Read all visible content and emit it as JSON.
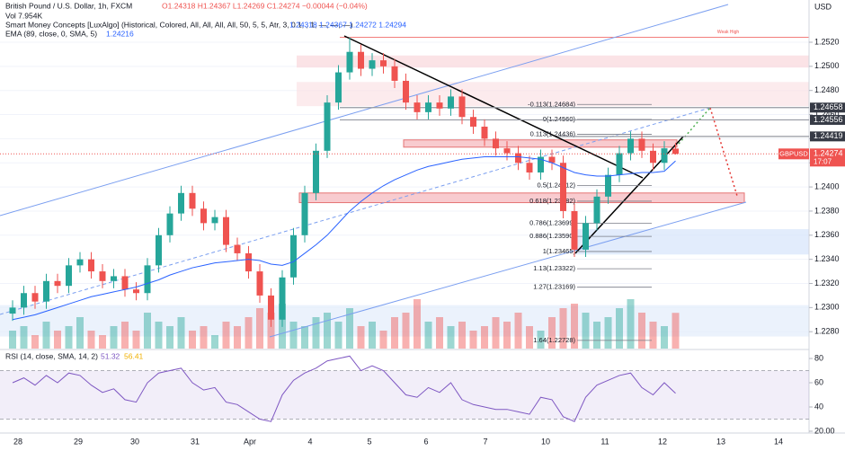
{
  "header": {
    "symbol": "British Pound / U.S. Dollar, 1h, FXCM",
    "ohlc": "O1.24318 H1.24367 L1.24269 C1.24274 −0.00044 (−0.04%)",
    "volume": "Vol 7.954K",
    "smc": "Smart Money Concepts [LuxAlgo] (Historical, Colored, All, All, All, All, 50, 5, 5, Atr, 3, 0.1, , 1, —, —, —)",
    "smc_values": "1.24318 1.24367 1.24272 1.24294",
    "ema": "EMA (89, close, 0, SMA, 5)",
    "ema_value": "1.24216",
    "currency": "USD"
  },
  "chart_data": [
    {
      "type": "candlestick",
      "open": [
        1.2295,
        1.23,
        1.2312,
        1.2305,
        1.2322,
        1.2318,
        1.2335,
        1.234,
        1.233,
        1.2322,
        1.2326,
        1.2315,
        1.2312,
        1.2335,
        1.236,
        1.2378,
        1.2395,
        1.2382,
        1.237,
        1.2375,
        1.2352,
        1.2345,
        1.233,
        1.231,
        1.229,
        1.2325,
        1.236,
        1.2395,
        1.243,
        1.247,
        1.2495,
        1.2512,
        1.2498,
        1.2505,
        1.25,
        1.2488,
        1.247,
        1.2462,
        1.247,
        1.2465,
        1.2475,
        1.2458,
        1.245,
        1.244,
        1.2432,
        1.2428,
        1.242,
        1.2412,
        1.2425,
        1.242,
        1.238,
        1.2348,
        1.237,
        1.2392,
        1.241,
        1.2428,
        1.244,
        1.243,
        1.242,
        1.24318
      ],
      "high": [
        1.2306,
        1.2318,
        1.2318,
        1.2328,
        1.2328,
        1.2341,
        1.2346,
        1.2346,
        1.2336,
        1.2332,
        1.2332,
        1.2321,
        1.2341,
        1.2366,
        1.2384,
        1.2401,
        1.2401,
        1.2388,
        1.2381,
        1.2381,
        1.2358,
        1.2351,
        1.2336,
        1.2316,
        1.2331,
        1.2366,
        1.2401,
        1.2436,
        1.2476,
        1.2501,
        1.2524,
        1.2518,
        1.2511,
        1.2511,
        1.2506,
        1.2494,
        1.2476,
        1.2476,
        1.2476,
        1.2481,
        1.2481,
        1.2464,
        1.2456,
        1.2446,
        1.2438,
        1.2434,
        1.2426,
        1.2431,
        1.2431,
        1.2426,
        1.2386,
        1.2376,
        1.2398,
        1.2416,
        1.2434,
        1.2446,
        1.2446,
        1.2436,
        1.2438,
        1.24367
      ],
      "low": [
        1.2289,
        1.2294,
        1.2299,
        1.2299,
        1.2312,
        1.2312,
        1.2329,
        1.2324,
        1.2316,
        1.2316,
        1.2309,
        1.2306,
        1.2306,
        1.2329,
        1.2354,
        1.2372,
        1.2376,
        1.2364,
        1.2364,
        1.2346,
        1.2339,
        1.2324,
        1.2304,
        1.2284,
        1.2284,
        1.2319,
        1.2354,
        1.2389,
        1.2424,
        1.2464,
        1.2489,
        1.2492,
        1.2492,
        1.2494,
        1.2482,
        1.2464,
        1.2456,
        1.2456,
        1.2459,
        1.2459,
        1.2452,
        1.2444,
        1.2434,
        1.2426,
        1.2422,
        1.2414,
        1.2406,
        1.2406,
        1.2414,
        1.2374,
        1.2342,
        1.2342,
        1.2364,
        1.2386,
        1.2404,
        1.2422,
        1.2424,
        1.2414,
        1.2414,
        1.24269
      ],
      "close": [
        1.23,
        1.2312,
        1.2305,
        1.2322,
        1.2318,
        1.2335,
        1.234,
        1.233,
        1.2322,
        1.2326,
        1.2315,
        1.2312,
        1.2335,
        1.236,
        1.2378,
        1.2395,
        1.2382,
        1.237,
        1.2375,
        1.2352,
        1.2345,
        1.233,
        1.231,
        1.229,
        1.2325,
        1.236,
        1.2395,
        1.243,
        1.247,
        1.2495,
        1.2512,
        1.2498,
        1.2505,
        1.25,
        1.2488,
        1.247,
        1.2462,
        1.247,
        1.2465,
        1.2475,
        1.2458,
        1.245,
        1.244,
        1.2432,
        1.2428,
        1.242,
        1.2412,
        1.2425,
        1.242,
        1.238,
        1.2348,
        1.237,
        1.2392,
        1.241,
        1.2428,
        1.244,
        1.243,
        1.242,
        1.2432,
        1.24274
      ],
      "ema_values": [
        1.229,
        1.2292,
        1.2294,
        1.2297,
        1.23,
        1.2303,
        1.2306,
        1.2309,
        1.2311,
        1.2313,
        1.2315,
        1.2317,
        1.232,
        1.2323,
        1.2327,
        1.233,
        1.2333,
        1.2335,
        1.2337,
        1.2338,
        1.2339,
        1.234,
        1.2339,
        1.2336,
        1.2335,
        1.2338,
        1.2345,
        1.2352,
        1.236,
        1.237,
        1.238,
        1.2388,
        1.2395,
        1.2401,
        1.2406,
        1.241,
        1.2414,
        1.2417,
        1.2419,
        1.2421,
        1.2423,
        1.2424,
        1.2425,
        1.2425,
        1.2425,
        1.2425,
        1.2424,
        1.2423,
        1.242,
        1.2416,
        1.2412,
        1.241,
        1.2409,
        1.2409,
        1.241,
        1.2411,
        1.2412,
        1.2412,
        1.2413,
        1.24216
      ],
      "ema_color": "#2962ff",
      "volume": [
        4,
        5,
        3,
        6,
        4,
        5,
        7,
        4,
        3,
        5,
        6,
        4,
        8,
        6,
        5,
        7,
        4,
        5,
        3,
        6,
        5,
        7,
        9,
        8,
        10,
        6,
        5,
        7,
        8,
        6,
        9,
        5,
        6,
        4,
        7,
        8,
        11,
        6,
        7,
        5,
        6,
        4,
        5,
        7,
        6,
        8,
        5,
        4,
        7,
        9,
        10,
        8,
        6,
        7,
        9,
        11,
        8,
        6,
        5,
        7.954
      ],
      "volume_lim": [
        0,
        20
      ],
      "up_color": "#26a69a",
      "down_color": "#ef5350",
      "ylim": [
        1.2266,
        1.2555
      ],
      "yticks": [
        {
          "value": 1.228,
          "label": "1.2280"
        },
        {
          "value": 1.23,
          "label": "1.2300"
        },
        {
          "value": 1.232,
          "label": "1.2320"
        },
        {
          "value": 1.234,
          "label": "1.2340"
        },
        {
          "value": 1.236,
          "label": "1.2360"
        },
        {
          "value": 1.238,
          "label": "1.2380"
        },
        {
          "value": 1.24,
          "label": "1.2400"
        },
        {
          "value": 1.242,
          "label": "1.2420"
        },
        {
          "value": 1.244,
          "label": "1.2440"
        },
        {
          "value": 1.246,
          "label": "1.2460"
        },
        {
          "value": 1.248,
          "label": "1.2480"
        },
        {
          "value": 1.25,
          "label": "1.2500"
        },
        {
          "value": 1.252,
          "label": "1.2520"
        }
      ],
      "grid": true,
      "price_marks": [
        {
          "value": 1.24658,
          "label": "1.24658"
        },
        {
          "value": 1.24556,
          "label": "1.24556"
        },
        {
          "value": 1.24419,
          "label": "1.24419"
        }
      ],
      "last_price": {
        "value": 1.24274,
        "label": "1.24274",
        "symbol": "GBPUSD",
        "countdown": "17:07"
      },
      "fib": [
        {
          "value": 1.24684,
          "label": "-0.113(1.24684)"
        },
        {
          "value": 1.2456,
          "label": "0(1.24560)"
        },
        {
          "value": 1.24436,
          "label": "0.113(1.24436)"
        },
        {
          "value": 1.24012,
          "label": "0.5(1.24012)"
        },
        {
          "value": 1.23882,
          "label": "0.618(1.23882)"
        },
        {
          "value": 1.23699,
          "label": "0.786(1.23699)"
        },
        {
          "value": 1.2359,
          "label": "0.886(1.23590)"
        },
        {
          "value": 1.23465,
          "label": "1(1.23465)"
        },
        {
          "value": 1.23322,
          "label": "1.13(1.23322)"
        },
        {
          "value": 1.23169,
          "label": "1.27(1.23169)"
        },
        {
          "value": 1.22728,
          "label": "1.64(1.22728)"
        }
      ],
      "zones": [
        {
          "top": 1.2509,
          "bottom": 1.2499,
          "color": "#f9d7dc"
        },
        {
          "top": 1.2487,
          "bottom": 1.2467,
          "color": "#fbe3e6"
        },
        {
          "top": 1.2439,
          "bottom": 1.2433,
          "color": "#f5b5bb"
        },
        {
          "top": 1.2395,
          "bottom": 1.2387,
          "color": "#f5b5bb"
        },
        {
          "top": 1.2365,
          "bottom": 1.2344,
          "color": "#d6e4fb"
        },
        {
          "top": 1.2302,
          "bottom": 1.2276,
          "color": "#e3ecfb"
        }
      ],
      "annotation": "Weak High",
      "x_labels": [
        "28",
        "29",
        "30",
        "31",
        "Apr",
        "4",
        "5",
        "6",
        "7",
        "10",
        "11",
        "12",
        "13",
        "14"
      ]
    },
    {
      "type": "line",
      "title": "RSI (14, close, SMA, 14, 2)",
      "value_label": "51.32",
      "sma_label": "56.41",
      "values": [
        60,
        64,
        58,
        66,
        60,
        68,
        66,
        58,
        52,
        55,
        46,
        44,
        60,
        68,
        70,
        72,
        60,
        54,
        56,
        44,
        42,
        36,
        30,
        28,
        50,
        62,
        68,
        72,
        78,
        80,
        82,
        70,
        74,
        70,
        60,
        50,
        48,
        56,
        52,
        60,
        46,
        42,
        40,
        38,
        38,
        36,
        34,
        48,
        46,
        32,
        28,
        48,
        58,
        62,
        66,
        68,
        56,
        50,
        60,
        51.32
      ],
      "color": "#7e57c2",
      "bands": [
        30,
        70
      ],
      "ylim": [
        18.5,
        86.7
      ],
      "yticks": [
        80,
        60,
        40,
        {
          "value": 20,
          "label": "20.00"
        }
      ]
    }
  ]
}
